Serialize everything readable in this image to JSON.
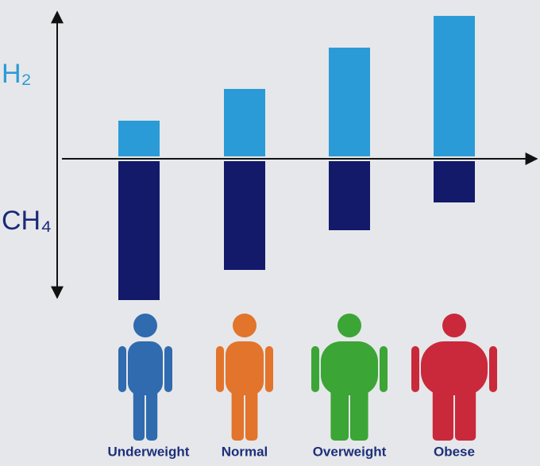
{
  "chart_data": {
    "type": "bar",
    "categories": [
      "Underweight",
      "Normal",
      "Overweight",
      "Obese"
    ],
    "category_colors": [
      "#2f6bae",
      "#e2742c",
      "#3ba536",
      "#c9293b"
    ],
    "series": [
      {
        "name": "H₂",
        "color": "#2b9bd8",
        "values": [
          48,
          88,
          140,
          180
        ]
      },
      {
        "name": "CH₄",
        "color": "#131a6a",
        "values": [
          -178,
          -140,
          -90,
          -55
        ]
      }
    ],
    "ylim": [
      -180,
      185
    ]
  }
}
